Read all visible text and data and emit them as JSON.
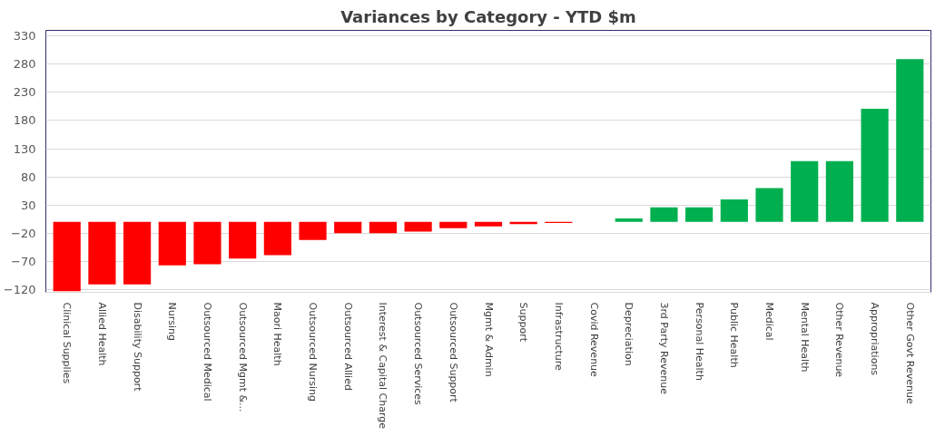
{
  "chart_data": {
    "type": "bar",
    "title": "Variances by Category - YTD $m",
    "categories": [
      "Clinical Supplies",
      "Allied Health",
      "Disability Support",
      "Nursing",
      "Outsourced Medical",
      "Outsourced Mgmt &...",
      "Maori Health",
      "Outsourced Nursing",
      "Outsourced Allied",
      "Interest & Capital Charge",
      "Outsourced Services",
      "Outsourced Support",
      "Mgmt & Admin",
      "Support",
      "Infrastructure",
      "Covid Revenue",
      "Depreciation",
      "3rd Party Revenue",
      "Personal Health",
      "Public Health",
      "Medical",
      "Mental Health",
      "Other Revenue",
      "Appropriations",
      "Other Govt Revenue"
    ],
    "values": [
      -123,
      -111,
      -111,
      -77,
      -75,
      -65,
      -59,
      -32,
      -20,
      -20,
      -17,
      -11,
      -8,
      -4,
      -2,
      0,
      6,
      26,
      26,
      40,
      60,
      108,
      108,
      201,
      289
    ],
    "colors": [
      "#ff0000",
      "#ff0000",
      "#ff0000",
      "#ff0000",
      "#ff0000",
      "#ff0000",
      "#ff0000",
      "#ff0000",
      "#ff0000",
      "#ff0000",
      "#ff0000",
      "#ff0000",
      "#ff0000",
      "#ff0000",
      "#ff0000",
      "#00b050",
      "#00b050",
      "#00b050",
      "#00b050",
      "#00b050",
      "#00b050",
      "#00b050",
      "#00b050",
      "#00b050",
      "#00b050"
    ],
    "ylim": [
      -125,
      340
    ],
    "yticks": [
      -120,
      -70,
      -20,
      30,
      80,
      130,
      180,
      230,
      280,
      330
    ],
    "grid": "y"
  }
}
